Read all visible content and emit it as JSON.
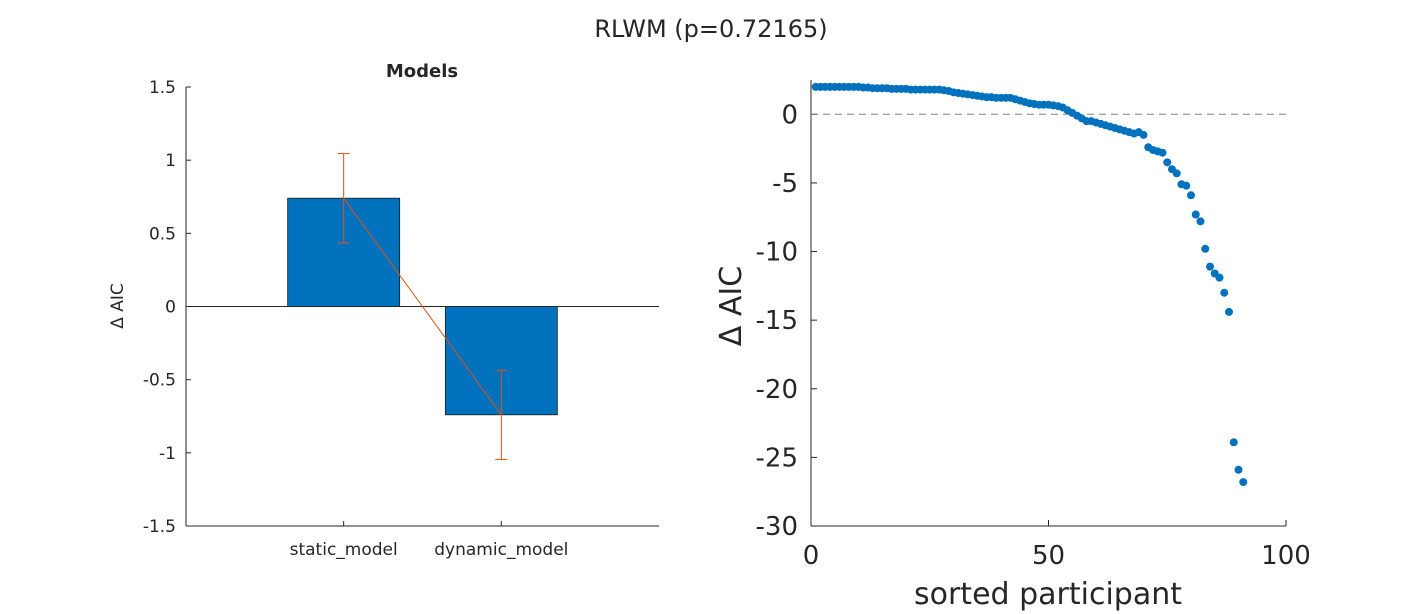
{
  "figure": {
    "suptitle": "RLWM (p=0.72165)"
  },
  "chart_data": [
    {
      "type": "bar",
      "title": "Models",
      "xlabel": "",
      "ylabel": "Δ AIC",
      "categories": [
        "static_model",
        "dynamic_model"
      ],
      "values": [
        0.74,
        -0.74
      ],
      "error": [
        0.305,
        0.305
      ],
      "ylim": [
        -1.5,
        1.5
      ],
      "yticks": [
        -1.5,
        -1,
        -0.5,
        0,
        0.5,
        1,
        1.5
      ],
      "ytick_labels": [
        "-1.5",
        "-1",
        "-0.5",
        "0",
        "0.5",
        "1",
        "1.5"
      ],
      "grid": false,
      "colors": {
        "bar": "#0072BD",
        "error": "#D95319"
      }
    },
    {
      "type": "scatter",
      "title": "",
      "xlabel": "sorted participant",
      "ylabel": "Δ AIC",
      "xlim": [
        0,
        100
      ],
      "ylim": [
        -30,
        2.5
      ],
      "xticks": [
        0,
        50,
        100
      ],
      "xtick_labels": [
        "0",
        "50",
        "100"
      ],
      "yticks": [
        -30,
        -25,
        -20,
        -15,
        -10,
        -5,
        0
      ],
      "ytick_labels": [
        "-30",
        "-25",
        "-20",
        "-15",
        "-10",
        "-5",
        "0"
      ],
      "reference_line": {
        "y": 0,
        "style": "dashed"
      },
      "grid": false,
      "colors": {
        "points": "#0072BD",
        "reference": "#808080"
      },
      "x": [
        1,
        2,
        3,
        4,
        5,
        6,
        7,
        8,
        9,
        10,
        11,
        12,
        13,
        14,
        15,
        16,
        17,
        18,
        19,
        20,
        21,
        22,
        23,
        24,
        25,
        26,
        27,
        28,
        29,
        30,
        31,
        32,
        33,
        34,
        35,
        36,
        37,
        38,
        39,
        40,
        41,
        42,
        43,
        44,
        45,
        46,
        47,
        48,
        49,
        50,
        51,
        52,
        53,
        54,
        55,
        56,
        57,
        58,
        59,
        60,
        61,
        62,
        63,
        64,
        65,
        66,
        67,
        68,
        69,
        70,
        71,
        72,
        73,
        74,
        75,
        76,
        77,
        78,
        79,
        80,
        81,
        82,
        83,
        84,
        85,
        86,
        87,
        88,
        89,
        90,
        91
      ],
      "y": [
        2.0,
        2.0,
        2.0,
        2.0,
        2.0,
        2.0,
        2.0,
        2.0,
        2.0,
        2.0,
        1.95,
        1.95,
        1.9,
        1.9,
        1.9,
        1.9,
        1.85,
        1.85,
        1.85,
        1.85,
        1.8,
        1.8,
        1.8,
        1.8,
        1.8,
        1.8,
        1.8,
        1.75,
        1.7,
        1.6,
        1.55,
        1.5,
        1.45,
        1.4,
        1.35,
        1.3,
        1.25,
        1.25,
        1.2,
        1.2,
        1.2,
        1.2,
        1.1,
        1.0,
        0.9,
        0.8,
        0.75,
        0.7,
        0.7,
        0.7,
        0.65,
        0.6,
        0.5,
        0.3,
        0.1,
        -0.1,
        -0.3,
        -0.5,
        -0.5,
        -0.6,
        -0.7,
        -0.8,
        -0.9,
        -1.0,
        -1.1,
        -1.2,
        -1.3,
        -1.4,
        -1.3,
        -1.5,
        -2.4,
        -2.6,
        -2.7,
        -2.8,
        -3.5,
        -4.0,
        -4.3,
        -5.1,
        -5.2,
        -5.9,
        -7.3,
        -7.8,
        -9.8,
        -11.1,
        -11.6,
        -11.9,
        -13.0,
        -14.4,
        -23.9,
        -25.9,
        -26.8
      ]
    }
  ]
}
